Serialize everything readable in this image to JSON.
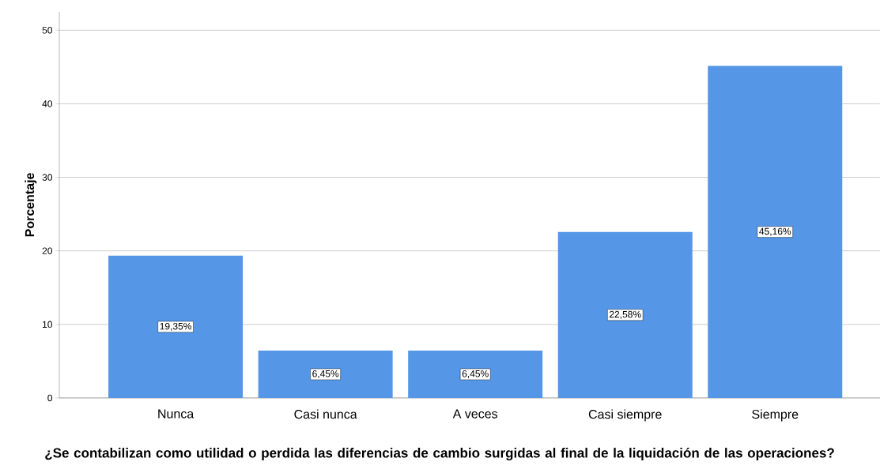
{
  "chart_data": {
    "type": "bar",
    "xlabel": "¿Se contabilizan como utilidad o perdida las diferencias de cambio surgidas al final de la liquidación de las operaciones?",
    "ylabel": "Porcentaje",
    "categories": [
      "Nunca",
      "Casi nunca",
      "A veces",
      "Casi siempre",
      "Siempre"
    ],
    "values": [
      19.35,
      6.45,
      6.45,
      22.58,
      45.16
    ],
    "value_labels": [
      "19,35%",
      "6,45%",
      "6,45%",
      "22,58%",
      "45,16%"
    ],
    "color": "#5596e6",
    "ylim": [
      0,
      52.5
    ],
    "yticks": [
      0,
      10,
      20,
      30,
      40,
      50
    ],
    "grid": "y"
  }
}
